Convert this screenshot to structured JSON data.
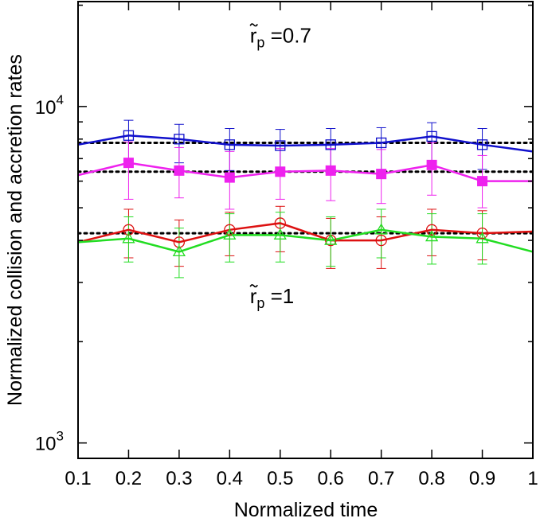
{
  "chart_data": {
    "type": "line",
    "title": "",
    "xlabel": "Normalized time",
    "ylabel": "Normalized collision and accretion rates",
    "xlim": [
      0.1,
      1.0
    ],
    "ylim": [
      900,
      20500
    ],
    "yscale": "log",
    "grid": false,
    "x_tick_labels": [
      "0.1",
      "0.2",
      "0.3",
      "0.4",
      "0.5",
      "0.6",
      "0.7",
      "0.8",
      "0.9",
      "1"
    ],
    "y_tick_labels": [
      {
        "base": "10",
        "exp": "3",
        "value": 1000
      },
      {
        "base": "10",
        "exp": "4",
        "value": 10000
      }
    ],
    "x": [
      0.1,
      0.2,
      0.3,
      0.4,
      0.5,
      0.6,
      0.7,
      0.8,
      0.9,
      1.0
    ],
    "series": [
      {
        "name": "blue-open-square",
        "color": "#1010cc",
        "marker": "open-square",
        "values": [
          7700,
          8200,
          8000,
          7700,
          7650,
          7700,
          7800,
          8150,
          7700,
          7350
        ],
        "err_lo": [
          null,
          6850,
          6800,
          6450,
          6450,
          6400,
          6500,
          6800,
          6500,
          null
        ],
        "err_hi": [
          null,
          9100,
          8850,
          8600,
          8550,
          8600,
          8650,
          8950,
          8600,
          null
        ],
        "reference": 7800
      },
      {
        "name": "magenta-filled-square",
        "color": "#ee22ee",
        "marker": "filled-square",
        "values": [
          6250,
          6800,
          6450,
          6150,
          6400,
          6450,
          6300,
          6700,
          6000,
          6000
        ],
        "err_lo": [
          null,
          5300,
          5350,
          4950,
          5300,
          5250,
          5150,
          5450,
          5000,
          null
        ],
        "err_hi": [
          null,
          7850,
          7550,
          7350,
          7500,
          7500,
          7450,
          7800,
          7150,
          null
        ],
        "reference": 6400
      },
      {
        "name": "red-open-circle",
        "color": "#dd1111",
        "marker": "open-circle",
        "values": [
          3950,
          4300,
          3950,
          4300,
          4500,
          4000,
          4000,
          4300,
          4200,
          4250
        ],
        "err_lo": [
          null,
          3550,
          3350,
          3600,
          3700,
          3300,
          3300,
          3600,
          3500,
          null
        ],
        "err_hi": [
          null,
          4950,
          4600,
          4850,
          5050,
          4650,
          4700,
          4950,
          4900,
          null
        ],
        "reference": 4200
      },
      {
        "name": "green-open-triangle",
        "color": "#22dd22",
        "marker": "open-triangle",
        "values": [
          3950,
          4050,
          3700,
          4150,
          4150,
          4000,
          4300,
          4100,
          4050,
          3700
        ],
        "err_lo": [
          null,
          3450,
          3100,
          3450,
          3450,
          3350,
          3550,
          3400,
          3400,
          null
        ],
        "err_hi": [
          null,
          4700,
          4350,
          4800,
          4850,
          4700,
          4950,
          4800,
          4800,
          null
        ],
        "reference": null
      }
    ],
    "annotations": [
      {
        "base": "r",
        "sub": "p",
        "rest": "=0.7",
        "x": 0.44,
        "y": 15500
      },
      {
        "base": "r",
        "sub": "p",
        "rest": "=1",
        "x": 0.44,
        "y": 2600
      }
    ]
  }
}
